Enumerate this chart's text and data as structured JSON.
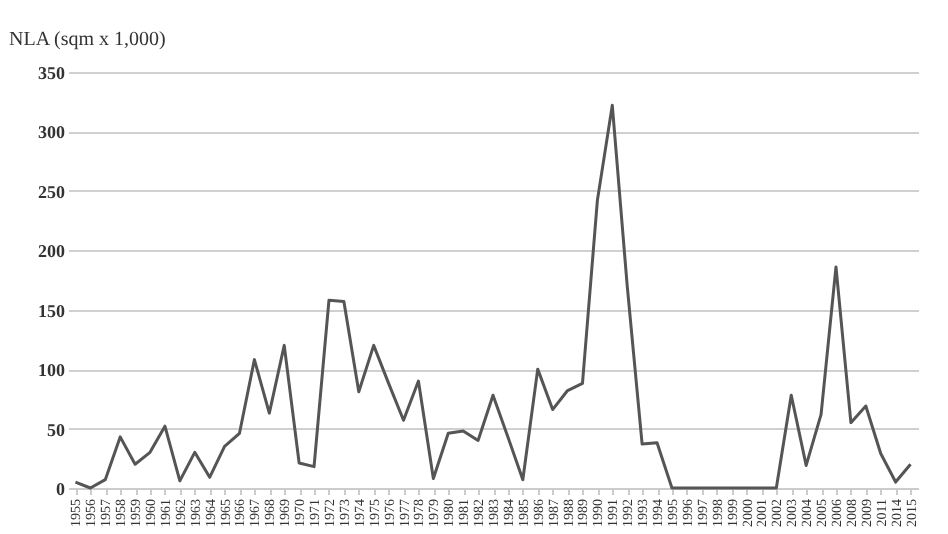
{
  "chart_data": {
    "type": "line",
    "ylabel": "NLA (sqm x 1,000)",
    "categories": [
      "1955",
      "1956",
      "1957",
      "1958",
      "1959",
      "1960",
      "1961",
      "1962",
      "1963",
      "1964",
      "1965",
      "1966",
      "1967",
      "1968",
      "1969",
      "1970",
      "1971",
      "1972",
      "1973",
      "1974",
      "1975",
      "1976",
      "1977",
      "1978",
      "1979",
      "1980",
      "1981",
      "1982",
      "1983",
      "1984",
      "1985",
      "1986",
      "1987",
      "1988",
      "1989",
      "1990",
      "1991",
      "1992",
      "1993",
      "1994",
      "1995",
      "1996",
      "1997",
      "1998",
      "1999",
      "2000",
      "2001",
      "2002",
      "2003",
      "2004",
      "2005",
      "2006",
      "2008",
      "2009",
      "2011",
      "2014",
      "2015"
    ],
    "series": [
      {
        "color": "#555555",
        "values": [
          5,
          0,
          7,
          43,
          20,
          30,
          52,
          6,
          30,
          9,
          35,
          46,
          108,
          63,
          120,
          21,
          18,
          158,
          157,
          81,
          120,
          88,
          57,
          90,
          8,
          46,
          48,
          40,
          78,
          43,
          7,
          100,
          66,
          82,
          88,
          242,
          322,
          170,
          37,
          38,
          0,
          0,
          0,
          0,
          0,
          0,
          0,
          0,
          78,
          19,
          62,
          186,
          55,
          69,
          29,
          5,
          20
        ]
      }
    ],
    "ylim": [
      0,
      350
    ],
    "yticks": [
      0,
      50,
      100,
      150,
      200,
      250,
      300,
      350
    ],
    "grid": "y",
    "legend": false,
    "marker": "none",
    "line_style": "solid"
  }
}
